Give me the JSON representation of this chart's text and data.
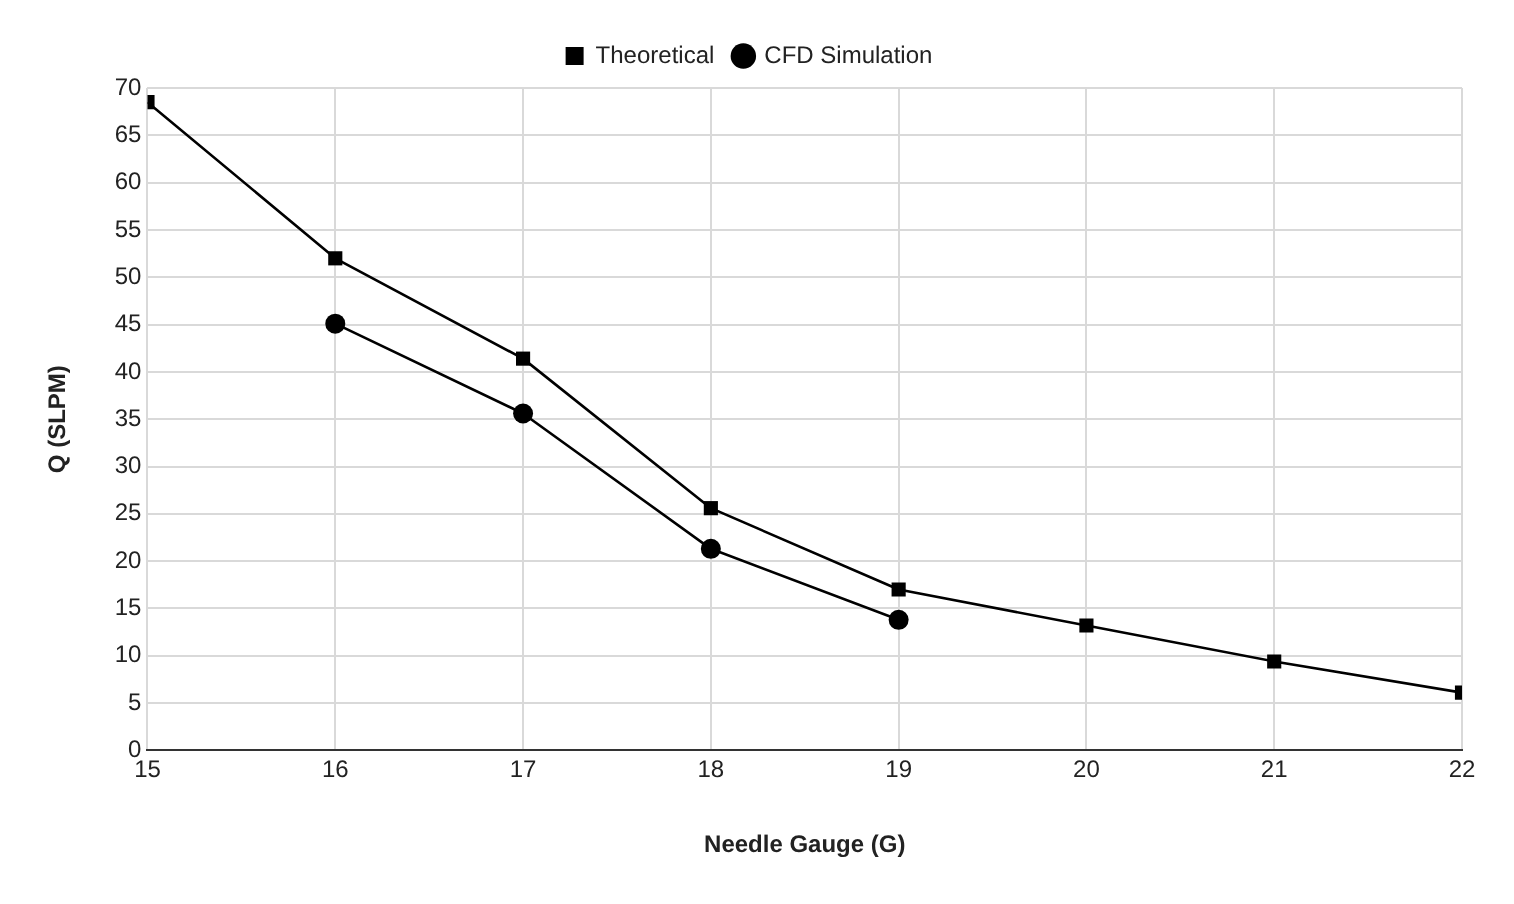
{
  "chart_data": {
    "type": "line",
    "xlabel": "Needle Gauge (G)",
    "ylabel": "Q (SLPM)",
    "x": [
      15,
      16,
      17,
      18,
      19,
      20,
      21,
      22
    ],
    "xlim": [
      15,
      22
    ],
    "xticks": [
      15,
      16,
      17,
      18,
      19,
      20,
      21,
      22
    ],
    "ylim": [
      0,
      70
    ],
    "yticks": [
      0,
      5,
      10,
      15,
      20,
      25,
      30,
      35,
      40,
      45,
      50,
      55,
      60,
      65,
      70
    ],
    "grid": true,
    "legend": "top",
    "line_style": "solid",
    "series": [
      {
        "name": "Theoretical",
        "color": "#000000",
        "marker": "square",
        "values": [
          68.5,
          52,
          41.4,
          25.6,
          17,
          13.2,
          9.4,
          6.1
        ]
      },
      {
        "name": "CFD Simulation",
        "color": "#000000",
        "marker": "circle",
        "values": [
          null,
          45.1,
          35.6,
          21.3,
          13.8,
          null,
          null,
          null
        ]
      }
    ]
  }
}
